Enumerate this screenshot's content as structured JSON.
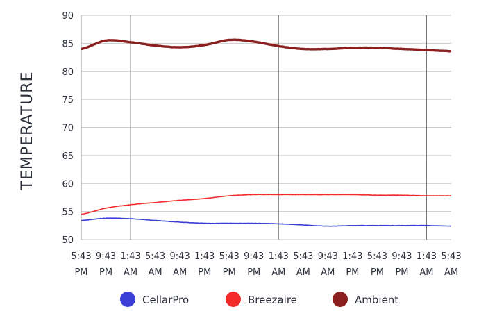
{
  "chart_data": {
    "type": "line",
    "title": "",
    "xlabel": "",
    "ylabel": "TEMPERATURE",
    "ylim": [
      50,
      90
    ],
    "y_ticks": [
      50,
      55,
      60,
      65,
      70,
      75,
      80,
      85,
      90
    ],
    "x_ticks": [
      [
        "5:43",
        "PM"
      ],
      [
        "9:43",
        "PM"
      ],
      [
        "1:43",
        "AM"
      ],
      [
        "5:43",
        "AM"
      ],
      [
        "9:43",
        "AM"
      ],
      [
        "1:43",
        "PM"
      ],
      [
        "5:43",
        "PM"
      ],
      [
        "9:43",
        "PM"
      ],
      [
        "1:43",
        "AM"
      ],
      [
        "5:43",
        "AM"
      ],
      [
        "9:43",
        "AM"
      ],
      [
        "1:43",
        "PM"
      ],
      [
        "5:43",
        "PM"
      ],
      [
        "9:43",
        "PM"
      ],
      [
        "1:43",
        "AM"
      ],
      [
        "5:43",
        "AM"
      ]
    ],
    "x": [
      0,
      4,
      8,
      12,
      16,
      20,
      24,
      28,
      32,
      36,
      40,
      44,
      48,
      52,
      56,
      60
    ],
    "vertical_gridlines_at": [
      8,
      32,
      56
    ],
    "horizontal_grid": true,
    "legend_position": "bottom",
    "series": [
      {
        "name": "CellarPro",
        "color": "#3b3fd6",
        "values": [
          53.4,
          53.8,
          53.7,
          53.4,
          53.1,
          52.9,
          52.9,
          52.9,
          52.8,
          52.6,
          52.4,
          52.5,
          52.5,
          52.5,
          52.5,
          52.4
        ]
      },
      {
        "name": "Breezaire",
        "color": "#f22a2a",
        "values": [
          54.5,
          55.6,
          56.2,
          56.6,
          57.0,
          57.3,
          57.8,
          58.0,
          58.0,
          58.0,
          58.0,
          58.0,
          57.9,
          57.9,
          57.8,
          57.8
        ]
      },
      {
        "name": "Ambient",
        "color": "#8b1f1f",
        "values": [
          84.0,
          85.5,
          85.2,
          84.6,
          84.3,
          84.7,
          85.6,
          85.3,
          84.5,
          84.0,
          84.0,
          84.2,
          84.2,
          84.0,
          83.8,
          83.6
        ]
      }
    ]
  }
}
